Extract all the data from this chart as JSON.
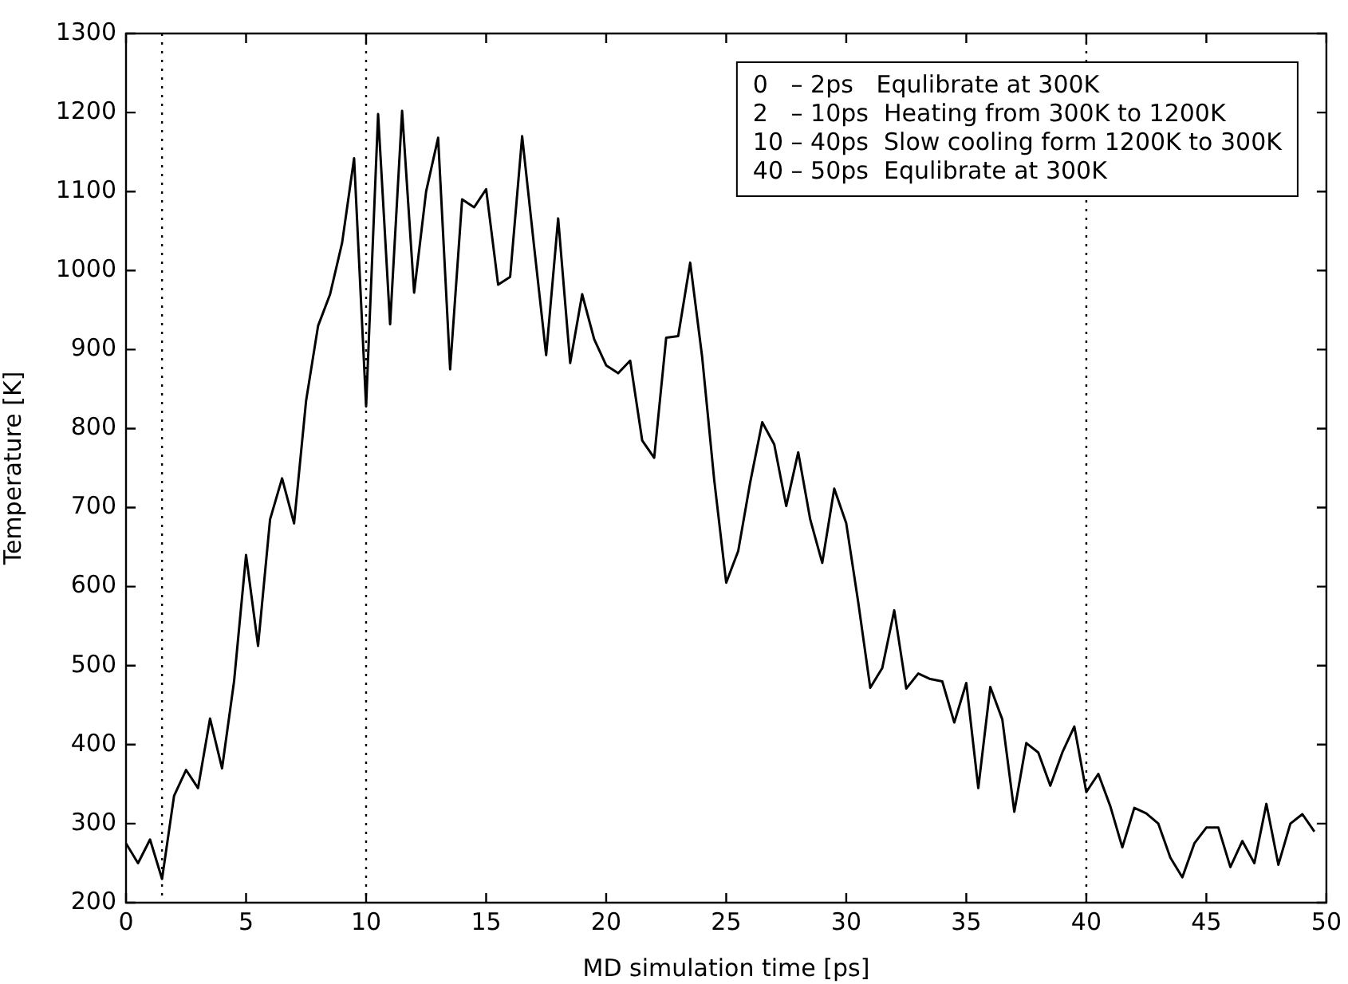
{
  "chart_data": {
    "type": "line",
    "xlabel": "MD simulation time [ps]",
    "ylabel": "Temperature [K]",
    "x": [
      0,
      0.5,
      1,
      1.5,
      2,
      2.5,
      3,
      3.5,
      4,
      4.5,
      5,
      5.5,
      6,
      6.5,
      7,
      7.5,
      8,
      8.5,
      9,
      9.5,
      10,
      10.5,
      11,
      11.5,
      12,
      12.5,
      13,
      13.5,
      14,
      14.5,
      15,
      15.5,
      16,
      16.5,
      17,
      17.5,
      18,
      18.5,
      19,
      19.5,
      20,
      20.5,
      21,
      21.5,
      22,
      22.5,
      23,
      23.5,
      24,
      24.5,
      25,
      25.5,
      26,
      26.5,
      27,
      27.5,
      28,
      28.5,
      29,
      29.5,
      30,
      30.5,
      31,
      31.5,
      32,
      32.5,
      33,
      33.5,
      34,
      34.5,
      35,
      35.5,
      36,
      36.5,
      37,
      37.5,
      38,
      38.5,
      39,
      39.5,
      40,
      40.5,
      41,
      41.5,
      42,
      42.5,
      43,
      43.5,
      44,
      44.5,
      45,
      45.5,
      46,
      46.5,
      47,
      47.5,
      48,
      48.5,
      49,
      49.5
    ],
    "series": [
      {
        "color": "#000000",
        "values": [
          275,
          250,
          280,
          230,
          335,
          368,
          345,
          433,
          370,
          480,
          640,
          525,
          685,
          737,
          680,
          835,
          930,
          970,
          1035,
          1142,
          828,
          1198,
          932,
          1202,
          972,
          1100,
          1168,
          875,
          1090,
          1080,
          1103,
          982,
          992,
          1170,
          1030,
          893,
          1066,
          883,
          970,
          913,
          880,
          870,
          886,
          785,
          763,
          915,
          917,
          1010,
          890,
          735,
          605,
          645,
          732,
          808,
          780,
          702,
          770,
          685,
          630,
          724,
          680,
          580,
          472,
          497,
          570,
          471,
          490,
          483,
          480,
          428,
          478,
          345,
          473,
          432,
          315,
          402,
          390,
          348,
          390,
          423,
          340,
          363,
          322,
          270,
          320,
          313,
          300,
          257,
          232,
          275,
          295,
          295,
          245,
          278,
          250,
          325,
          248,
          300,
          312,
          290
        ]
      }
    ],
    "xlim": [
      0,
      50
    ],
    "xticks": [
      0,
      5,
      10,
      15,
      20,
      25,
      30,
      35,
      40,
      45,
      50
    ],
    "ylim": [
      200,
      1300
    ],
    "yticks": [
      200,
      300,
      400,
      500,
      600,
      700,
      800,
      900,
      1000,
      1100,
      1200,
      1300
    ],
    "grid": false,
    "legend": false,
    "marker": "none",
    "line_style": "solid",
    "ref_lines": [
      {
        "axis": "x",
        "value": 1.5,
        "color": "#000000",
        "line_style": "dotted"
      },
      {
        "axis": "x",
        "value": 10,
        "color": "#000000",
        "line_style": "dotted"
      },
      {
        "axis": "x",
        "value": 40,
        "color": "#000000",
        "line_style": "dotted"
      }
    ],
    "annotations": [
      "0   – 2ps   Equlibrate at 300K",
      "2   – 10ps  Heating from 300K to 1200K",
      "10 – 40ps  Slow cooling form 1200K to 300K",
      "40 – 50ps  Equlibrate at 300K"
    ]
  }
}
